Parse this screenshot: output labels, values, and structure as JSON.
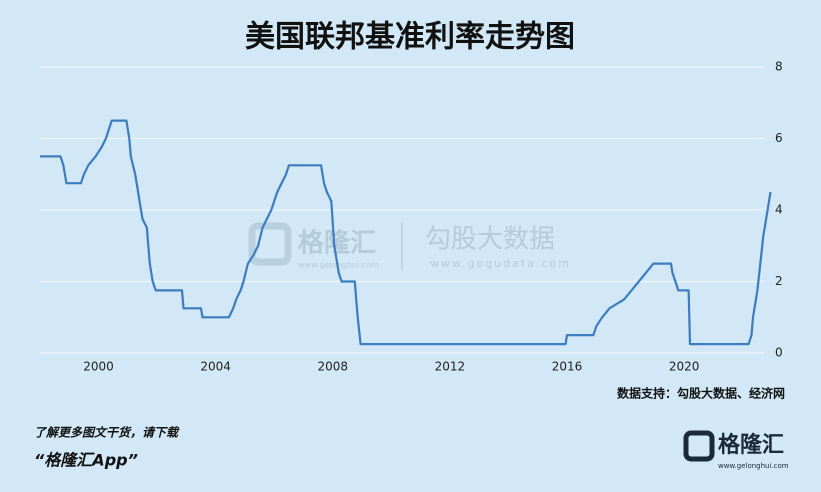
{
  "chart_data": {
    "type": "line",
    "title": "美国联邦基准利率走势图",
    "x": [
      1998.0,
      1998.7,
      1998.8,
      1998.9,
      1999.4,
      1999.5,
      1999.65,
      1999.9,
      2000.1,
      2000.25,
      2000.45,
      2000.95,
      2001.05,
      2001.1,
      2001.25,
      2001.35,
      2001.45,
      2001.5,
      2001.65,
      2001.7,
      2001.75,
      2001.85,
      2001.95,
      2002.85,
      2002.9,
      2003.5,
      2003.55,
      2004.45,
      2004.6,
      2004.7,
      2004.85,
      2004.95,
      2005.1,
      2005.3,
      2005.45,
      2005.6,
      2005.75,
      2005.9,
      2006.1,
      2006.25,
      2006.4,
      2006.5,
      2007.6,
      2007.7,
      2007.8,
      2007.95,
      2008.05,
      2008.2,
      2008.3,
      2008.75,
      2008.8,
      2008.85,
      2008.95,
      2015.95,
      2016.0,
      2016.9,
      2017.0,
      2017.2,
      2017.45,
      2017.95,
      2018.2,
      2018.45,
      2018.7,
      2018.95,
      2019.55,
      2019.6,
      2019.7,
      2019.8,
      2020.15,
      2020.2,
      2022.2,
      2022.3,
      2022.35,
      2022.5,
      2022.6,
      2022.7,
      2022.85,
      2022.95
    ],
    "values": [
      5.5,
      5.5,
      5.25,
      4.75,
      4.75,
      5.0,
      5.25,
      5.5,
      5.75,
      6.0,
      6.5,
      6.5,
      6.0,
      5.5,
      5.0,
      4.5,
      4.0,
      3.75,
      3.5,
      3.0,
      2.5,
      2.0,
      1.75,
      1.75,
      1.25,
      1.25,
      1.0,
      1.0,
      1.25,
      1.5,
      1.75,
      2.0,
      2.5,
      2.75,
      3.0,
      3.5,
      3.75,
      4.0,
      4.5,
      4.75,
      5.0,
      5.25,
      5.25,
      4.75,
      4.5,
      4.25,
      3.0,
      2.25,
      2.0,
      2.0,
      1.5,
      1.0,
      0.25,
      0.25,
      0.5,
      0.5,
      0.75,
      1.0,
      1.25,
      1.5,
      1.75,
      2.0,
      2.25,
      2.5,
      2.5,
      2.25,
      2.0,
      1.75,
      1.75,
      0.25,
      0.25,
      0.5,
      1.0,
      1.75,
      2.5,
      3.25,
      4.0,
      4.5
    ],
    "color": "#3c7dbf",
    "xlim": [
      1998,
      2023
    ],
    "xticks": [
      2000,
      2004,
      2008,
      2012,
      2016,
      2020
    ],
    "ylim": [
      0,
      8
    ],
    "yticks": [
      0,
      2,
      4,
      6,
      8
    ],
    "grid": true,
    "source": "数据支持：勾股大数据、经济网"
  },
  "watermark": {
    "brand": "格隆汇",
    "brand_url": "www.gelonghui.com",
    "partner": "勾股大数据",
    "partner_url": "www.gogudata.com"
  },
  "footer": {
    "prompt": "了解更多图文干货，请下载",
    "app": "“格隆汇App”",
    "logo": "格隆汇",
    "logo_url": "www.gelonghui.com"
  }
}
